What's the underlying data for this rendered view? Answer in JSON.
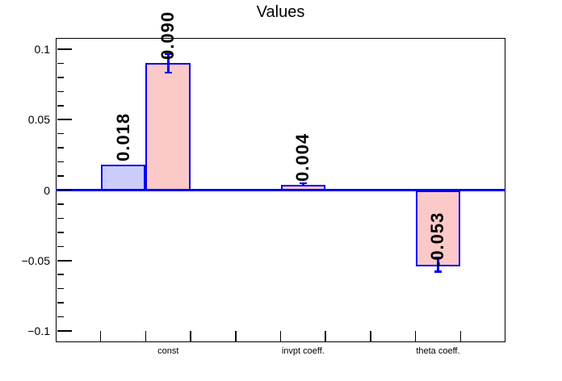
{
  "title": "Values",
  "axes": {
    "y_major_ticks": [
      {
        "value": 0.1,
        "label": "0.1"
      },
      {
        "value": 0.05,
        "label": "0.05"
      },
      {
        "value": 0,
        "label": "0"
      },
      {
        "value": -0.05,
        "label": "−0.05"
      },
      {
        "value": -0.1,
        "label": "−0.1"
      }
    ],
    "y_minor_step": 0.01,
    "x_category_labels": [
      "const",
      "invpt coeff.",
      "theta coeff."
    ]
  },
  "colors": {
    "bar_outline": "#0000f0",
    "zero_line": "#0000f0",
    "error_bar": "#0000f0",
    "series_blue_fill": "#ccccfa",
    "series_pink_fill": "#fcc9c9",
    "frame": "#000000",
    "text": "#000000",
    "background": "#ffffff"
  },
  "chart_data": {
    "type": "bar",
    "title": "Values",
    "categories": [
      "const",
      "invpt coeff.",
      "theta coeff."
    ],
    "series": [
      {
        "name": "blue",
        "fill": "#ccccfa",
        "values": [
          0.018,
          null,
          null
        ],
        "errors": [
          null,
          null,
          null
        ],
        "labels": [
          "0.018",
          null,
          null
        ]
      },
      {
        "name": "pink",
        "fill": "#fcc9c9",
        "values": [
          0.09,
          0.004,
          -0.053
        ],
        "errors": [
          0.0067,
          0.001,
          0.005
        ],
        "labels": [
          "0.090",
          "0.004",
          "-0.053"
        ]
      }
    ],
    "ylim": [
      -0.108,
      0.108
    ],
    "n_bins": 10,
    "bin_layout": "each category spans 3 bins: empty, blue-series bar, pink-series bar; category label centered under pink bin",
    "bar_value_labels_rotation_deg": -90,
    "grid": false,
    "legend": false
  }
}
